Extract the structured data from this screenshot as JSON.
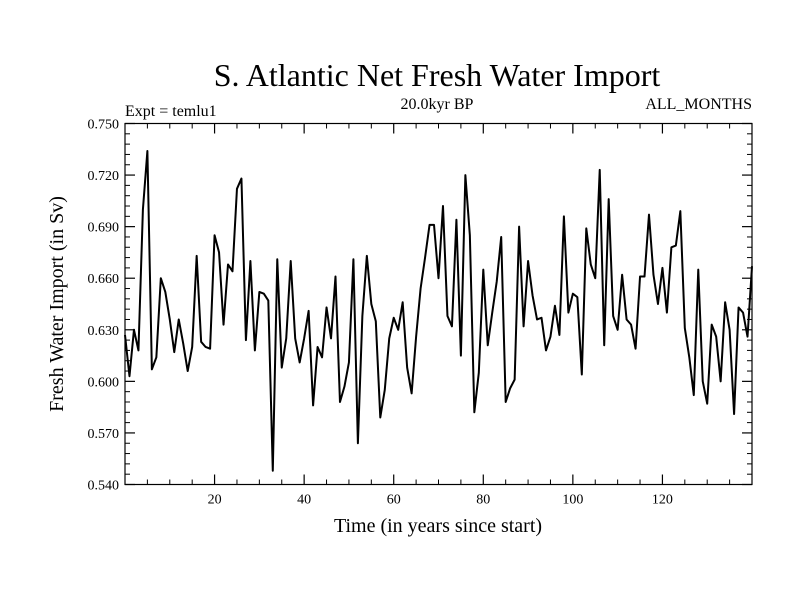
{
  "chart_data": {
    "type": "line",
    "title": "S. Atlantic Net Fresh Water Import",
    "left_subtitle": "Expt = temlu1",
    "center_subtitle": "20.0kyr BP",
    "right_subtitle": "ALL_MONTHS",
    "xlabel": "Time (in years since start)",
    "ylabel": "Fresh Water Import (in Sv)",
    "xlim": [
      0,
      140
    ],
    "ylim": [
      0.54,
      0.75
    ],
    "xticks": [
      20,
      40,
      60,
      80,
      100,
      120
    ],
    "xtick_labels": [
      "20",
      "40",
      "60",
      "80",
      "100",
      "120"
    ],
    "yticks": [
      0.54,
      0.57,
      0.6,
      0.63,
      0.66,
      0.69,
      0.72,
      0.75
    ],
    "ytick_labels": [
      "0.540",
      "0.570",
      "0.600",
      "0.630",
      "0.660",
      "0.690",
      "0.720",
      "0.750"
    ],
    "grid": false,
    "series": [
      {
        "name": "Fresh Water Import",
        "x": [
          0,
          1,
          2,
          3,
          4,
          5,
          6,
          7,
          8,
          9,
          10,
          11,
          12,
          13,
          14,
          15,
          16,
          17,
          18,
          19,
          20,
          21,
          22,
          23,
          24,
          25,
          26,
          27,
          28,
          29,
          30,
          31,
          32,
          33,
          34,
          35,
          36,
          37,
          38,
          39,
          40,
          41,
          42,
          43,
          44,
          45,
          46,
          47,
          48,
          49,
          50,
          51,
          52,
          53,
          54,
          55,
          56,
          57,
          58,
          59,
          60,
          61,
          62,
          63,
          64,
          65,
          66,
          67,
          68,
          69,
          70,
          71,
          72,
          73,
          74,
          75,
          76,
          77,
          78,
          79,
          80,
          81,
          82,
          83,
          84,
          85,
          86,
          87,
          88,
          89,
          90,
          91,
          92,
          93,
          94,
          95,
          96,
          97,
          98,
          99,
          100,
          101,
          102,
          103,
          104,
          105,
          106,
          107,
          108,
          109,
          110,
          111,
          112,
          113,
          114,
          115,
          116,
          117,
          118,
          119,
          120,
          121,
          122,
          123,
          124,
          125,
          126,
          127,
          128,
          129,
          130,
          131,
          132,
          133,
          134,
          135,
          136,
          137,
          138,
          139,
          140
        ],
        "values": [
          0.627,
          0.603,
          0.63,
          0.618,
          0.7,
          0.734,
          0.607,
          0.614,
          0.66,
          0.652,
          0.636,
          0.617,
          0.636,
          0.622,
          0.606,
          0.62,
          0.673,
          0.623,
          0.62,
          0.619,
          0.685,
          0.675,
          0.633,
          0.668,
          0.664,
          0.712,
          0.718,
          0.624,
          0.67,
          0.618,
          0.652,
          0.651,
          0.647,
          0.548,
          0.671,
          0.608,
          0.625,
          0.67,
          0.625,
          0.611,
          0.625,
          0.641,
          0.586,
          0.62,
          0.614,
          0.643,
          0.625,
          0.661,
          0.588,
          0.597,
          0.611,
          0.671,
          0.564,
          0.638,
          0.673,
          0.645,
          0.635,
          0.579,
          0.595,
          0.625,
          0.637,
          0.63,
          0.646,
          0.608,
          0.593,
          0.626,
          0.654,
          0.672,
          0.691,
          0.691,
          0.66,
          0.702,
          0.638,
          0.632,
          0.694,
          0.615,
          0.72,
          0.685,
          0.582,
          0.605,
          0.665,
          0.621,
          0.64,
          0.658,
          0.684,
          0.588,
          0.596,
          0.601,
          0.69,
          0.632,
          0.67,
          0.65,
          0.636,
          0.637,
          0.618,
          0.626,
          0.644,
          0.627,
          0.696,
          0.64,
          0.651,
          0.649,
          0.604,
          0.689,
          0.668,
          0.66,
          0.723,
          0.621,
          0.706,
          0.638,
          0.63,
          0.662,
          0.636,
          0.633,
          0.619,
          0.661,
          0.661,
          0.697,
          0.662,
          0.645,
          0.666,
          0.64,
          0.678,
          0.679,
          0.699,
          0.631,
          0.614,
          0.592,
          0.665,
          0.6,
          0.587,
          0.633,
          0.626,
          0.6,
          0.646,
          0.63,
          0.581,
          0.643,
          0.64,
          0.626,
          0.667
        ]
      }
    ]
  }
}
